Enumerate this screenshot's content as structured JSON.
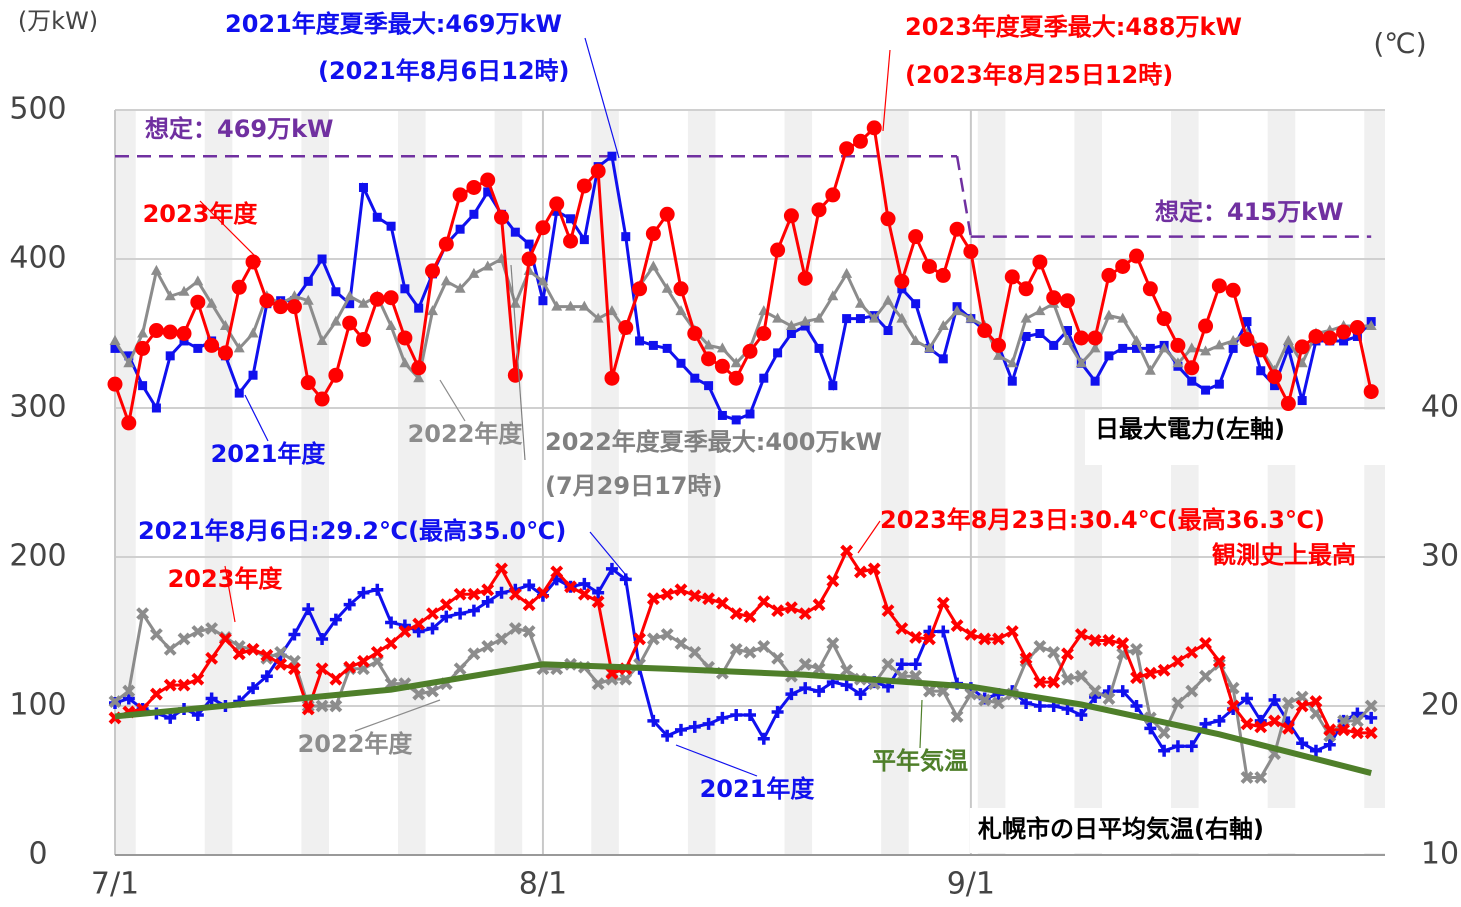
{
  "chart_data": {
    "type": "line",
    "left_unit": "(万kW)",
    "right_unit": "(℃)",
    "x": [
      0,
      1,
      2,
      3,
      4,
      5,
      6,
      7,
      8,
      9,
      10,
      11,
      12,
      13,
      14,
      15,
      16,
      17,
      18,
      19,
      20,
      21,
      22,
      23,
      24,
      25,
      26,
      27,
      28,
      29,
      30,
      31,
      32,
      33,
      34,
      35,
      36,
      37,
      38,
      39,
      40,
      41,
      42,
      43,
      44,
      45,
      46,
      47,
      48,
      49,
      50,
      51,
      52,
      53,
      54,
      55,
      56,
      57,
      58,
      59,
      60,
      61,
      62,
      63,
      64,
      65,
      66,
      67,
      68,
      69,
      70,
      71,
      72,
      73,
      74,
      75,
      76,
      77,
      78,
      79,
      80,
      81,
      82,
      83,
      84,
      85,
      86,
      87,
      88,
      89,
      90,
      91
    ],
    "xlim": [
      0,
      92
    ],
    "xticks": [
      {
        "value": 0,
        "label": "7/1"
      },
      {
        "value": 31,
        "label": "8/1"
      },
      {
        "value": 62,
        "label": "9/1"
      }
    ],
    "ylim": [
      0,
      500
    ],
    "yticks": [
      0,
      100,
      200,
      300,
      400,
      500
    ],
    "y2lim": [
      10,
      60
    ],
    "y2ticks": [
      10,
      20,
      30,
      40
    ],
    "grid": true,
    "series": [
      {
        "name": "2021年度",
        "color": "#1010ee",
        "marker": "square",
        "values": [
          340,
          335,
          315,
          300,
          335,
          345,
          340,
          345,
          335,
          310,
          322,
          370,
          372,
          372,
          385,
          400,
          378,
          370,
          448,
          428,
          422,
          380,
          367,
          390,
          410,
          420,
          430,
          445,
          430,
          418,
          410,
          372,
          432,
          427,
          413,
          462,
          469,
          415,
          345,
          342,
          340,
          330,
          320,
          315,
          295,
          292,
          296,
          320,
          337,
          350,
          355,
          340,
          315,
          360,
          360,
          362,
          352,
          380,
          370,
          340,
          333,
          368,
          360,
          352,
          342,
          318,
          348,
          350,
          342,
          352,
          330,
          318,
          335,
          340,
          340,
          340,
          342,
          328,
          318,
          312,
          316,
          340,
          358,
          325,
          315,
          340,
          305,
          345,
          345,
          345,
          348,
          358
        ]
      },
      {
        "name": "2022年度",
        "color": "#8c8c8c",
        "marker": "triangle",
        "values": [
          345,
          330,
          350,
          392,
          375,
          378,
          385,
          370,
          355,
          340,
          350,
          375,
          370,
          375,
          372,
          345,
          358,
          375,
          370,
          375,
          355,
          330,
          320,
          365,
          385,
          380,
          390,
          395,
          400,
          370,
          392,
          385,
          368,
          368,
          368,
          360,
          365,
          352,
          382,
          395,
          380,
          365,
          352,
          342,
          340,
          330,
          340,
          365,
          360,
          355,
          358,
          360,
          375,
          390,
          370,
          360,
          372,
          360,
          345,
          340,
          355,
          365,
          360,
          355,
          335,
          330,
          360,
          365,
          370,
          345,
          330,
          340,
          362,
          360,
          345,
          325,
          340,
          330,
          340,
          338,
          342,
          345,
          350,
          340,
          325,
          345,
          330,
          350,
          352,
          355,
          355,
          355
        ]
      },
      {
        "name": "2023年度",
        "color": "#ff0000",
        "marker": "circle",
        "values": [
          316,
          290,
          340,
          352,
          351,
          350,
          371,
          342,
          337,
          381,
          398,
          372,
          368,
          368,
          317,
          306,
          322,
          357,
          346,
          373,
          374,
          347,
          327,
          392,
          410,
          443,
          448,
          453,
          428,
          322,
          400,
          421,
          437,
          412,
          449,
          459,
          320,
          354,
          380,
          417,
          430,
          380,
          350,
          333,
          328,
          320,
          338,
          350,
          406,
          429,
          387,
          433,
          443,
          474,
          479,
          488,
          427,
          385,
          415,
          395,
          389,
          420,
          405,
          352,
          342,
          388,
          380,
          398,
          374,
          372,
          347,
          347,
          389,
          395,
          402,
          380,
          360,
          342,
          327,
          355,
          382,
          379,
          346,
          339,
          321,
          303,
          341,
          348,
          347,
          351,
          354,
          311
        ]
      },
      {
        "name": "2021年度",
        "color": "#1010ee",
        "marker": "plus",
        "axis": "y2",
        "values": [
          20.2,
          20.5,
          19.8,
          19.5,
          19.2,
          19.8,
          19.4,
          20.5,
          20.0,
          20.3,
          21.2,
          22.0,
          23.4,
          24.8,
          26.5,
          24.5,
          25.8,
          26.8,
          27.6,
          27.8,
          25.6,
          25.4,
          25.0,
          25.2,
          26.0,
          26.2,
          26.4,
          27.0,
          27.6,
          27.8,
          28.1,
          27.4,
          28.5,
          28.0,
          28.2,
          27.6,
          29.2,
          28.5,
          22.5,
          19.0,
          18.0,
          18.4,
          18.6,
          18.8,
          19.2,
          19.4,
          19.4,
          17.8,
          19.6,
          20.8,
          21.2,
          21.0,
          21.6,
          21.4,
          20.8,
          21.6,
          21.3,
          22.8,
          22.8,
          25.0,
          25.0,
          21.5,
          21.2,
          20.5,
          20.8,
          21.0,
          20.2,
          20.0,
          20.0,
          19.8,
          19.4,
          20.6,
          21.0,
          21.0,
          20.0,
          18.5,
          17.0,
          17.3,
          17.3,
          18.8,
          19.0,
          19.8,
          20.5,
          19.0,
          20.4,
          18.9,
          17.5,
          17.0,
          17.4,
          19.0,
          19.5,
          19.2
        ]
      },
      {
        "name": "2022年度",
        "color": "#8c8c8c",
        "marker": "x",
        "axis": "y2",
        "values": [
          20.3,
          21.0,
          26.2,
          24.8,
          23.8,
          24.5,
          25.0,
          25.2,
          24.6,
          24.0,
          23.8,
          23.2,
          23.6,
          23.0,
          20.0,
          20.0,
          20.0,
          22.5,
          22.5,
          23.0,
          21.5,
          21.5,
          20.8,
          21.0,
          21.5,
          22.5,
          23.5,
          24.0,
          24.5,
          25.2,
          25.0,
          22.5,
          22.5,
          22.8,
          22.6,
          21.5,
          21.8,
          21.8,
          22.8,
          24.5,
          24.8,
          24.2,
          23.6,
          22.6,
          22.2,
          23.8,
          23.6,
          24.0,
          23.2,
          22.0,
          22.8,
          22.5,
          24.2,
          22.4,
          21.8,
          21.5,
          22.8,
          22.0,
          22.0,
          21.0,
          21.0,
          19.3,
          20.8,
          20.4,
          20.2,
          20.8,
          23.0,
          24.0,
          23.6,
          21.8,
          22.0,
          21.0,
          20.5,
          23.5,
          23.8,
          19.2,
          18.2,
          20.2,
          21.0,
          22.0,
          22.8,
          21.2,
          15.2,
          15.2,
          16.8,
          20.2,
          20.6,
          19.5,
          18.0,
          19.0,
          19.0,
          20.0
        ]
      },
      {
        "name": "2023年度",
        "color": "#ff0000",
        "marker": "x",
        "axis": "y2",
        "values": [
          19.2,
          19.6,
          19.8,
          20.8,
          21.4,
          21.4,
          21.8,
          23.2,
          24.5,
          23.5,
          23.8,
          23.4,
          22.8,
          22.5,
          19.8,
          22.5,
          21.8,
          22.6,
          23.0,
          23.6,
          24.2,
          25.0,
          25.5,
          26.2,
          26.8,
          27.5,
          27.5,
          27.8,
          29.2,
          27.5,
          26.8,
          27.6,
          29.0,
          28.0,
          27.5,
          27.0,
          22.2,
          22.5,
          24.5,
          27.2,
          27.5,
          27.8,
          27.4,
          27.2,
          26.9,
          26.2,
          26.0,
          27.0,
          26.4,
          26.6,
          26.2,
          26.8,
          28.4,
          30.4,
          29.0,
          29.2,
          26.4,
          25.2,
          24.6,
          24.5,
          26.9,
          25.4,
          24.8,
          24.5,
          24.5,
          25.0,
          23.2,
          21.6,
          21.6,
          23.5,
          24.8,
          24.4,
          24.4,
          24.2,
          21.9,
          22.2,
          22.4,
          23.0,
          23.6,
          24.2,
          23.0,
          20.0,
          18.8,
          18.6,
          19.0,
          18.5,
          20.0,
          20.3,
          18.4,
          18.4,
          18.2,
          18.2
        ]
      },
      {
        "name": "平年気温",
        "color": "#4f7f2a",
        "marker": "none",
        "axis": "y2",
        "x": [
          0,
          10,
          20,
          31,
          40,
          50,
          62,
          70,
          80,
          91
        ],
        "values": [
          19.3,
          20.2,
          21.1,
          22.8,
          22.5,
          22.1,
          21.3,
          20.1,
          18.1,
          15.5
        ]
      }
    ],
    "assumptions": [
      {
        "label": "想定：469万kW",
        "value": 469,
        "from": 0,
        "to": 61,
        "color": "#7030a0"
      },
      {
        "label": "想定：415万kW",
        "value": 415,
        "from": 62,
        "to": 91,
        "color": "#7030a0"
      }
    ],
    "annotations": [
      {
        "text": "2021年度夏季最大:469万kW",
        "color": "#1010ee"
      },
      {
        "text": "(2021年8月6日12時)",
        "color": "#1010ee"
      },
      {
        "text": "2023年度夏季最大:488万kW",
        "color": "#ff0000"
      },
      {
        "text": "(2023年8月25日12時)",
        "color": "#ff0000"
      },
      {
        "text": "2022年度夏季最大:400万kW",
        "color": "#808080"
      },
      {
        "text": "(7月29日17時)",
        "color": "#808080"
      },
      {
        "text": "日最大電力(左軸)",
        "color": "#000000"
      },
      {
        "text": "2021年8月6日:29.2℃(最高35.0℃)",
        "color": "#1010ee"
      },
      {
        "text": "2023年8月23日:30.4℃(最高36.3℃)",
        "color": "#ff0000"
      },
      {
        "text": "観測史上最高",
        "color": "#ff0000"
      },
      {
        "text": "札幌市の日平均気温(右軸)",
        "color": "#000000"
      }
    ]
  }
}
